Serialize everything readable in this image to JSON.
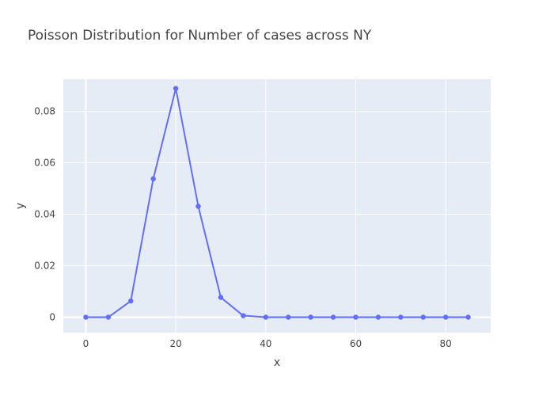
{
  "colors": {
    "plot_background": "#E5ECF6",
    "series": "#636EFA",
    "text": "#444444",
    "grid": "#FFFFFF"
  },
  "chart_data": {
    "type": "line",
    "title": "Poisson Distribution for Number of cases across NY",
    "xlabel": "x",
    "ylabel": "y",
    "xlim": [
      -5,
      90
    ],
    "ylim": [
      -0.006,
      0.0925
    ],
    "x_ticks": [
      0,
      20,
      40,
      60,
      80
    ],
    "x_tick_labels": [
      "0",
      "20",
      "40",
      "60",
      "80"
    ],
    "y_ticks": [
      0,
      0.02,
      0.04,
      0.06,
      0.08
    ],
    "y_tick_labels": [
      "0",
      "0.02",
      "0.04",
      "0.06",
      "0.08"
    ],
    "grid": true,
    "legend": "none",
    "series": [
      {
        "mode": "lines+markers",
        "x": [
          0,
          5,
          10,
          15,
          20,
          25,
          30,
          35,
          40,
          45,
          50,
          55,
          60,
          65,
          70,
          75,
          80,
          85
        ],
        "y": [
          0,
          0,
          0.0063,
          0.0538,
          0.0889,
          0.0431,
          0.0077,
          0.0006,
          0,
          0,
          0,
          0,
          0,
          0,
          0,
          0,
          0,
          0
        ]
      }
    ]
  }
}
